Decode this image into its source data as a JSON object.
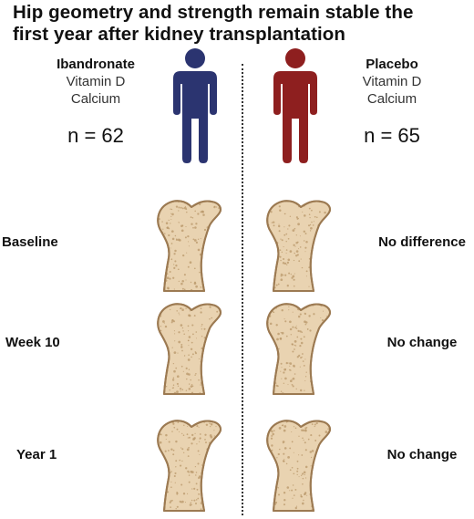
{
  "title": {
    "line1": "Hip geometry and strength remain stable the",
    "line2": "first year after kidney transplantation"
  },
  "groups": {
    "left": {
      "name": "Ibandronate",
      "line1": "Vitamin D",
      "line2": "Calcium",
      "n": "n = 62",
      "color": "#2b3470"
    },
    "right": {
      "name": "Placebo",
      "line1": "Vitamin D",
      "line2": "Calcium",
      "n": "n = 65",
      "color": "#8e1f1f"
    }
  },
  "rows": [
    {
      "label": "Baseline",
      "result": "No difference"
    },
    {
      "label": "Week 10",
      "result": "No change"
    },
    {
      "label": "Year 1",
      "result": "No change"
    }
  ],
  "colors": {
    "bone_fill": "#e9d3b1",
    "bone_outline": "#9c7a52",
    "bone_speckle": "#b8976a"
  },
  "icons": {
    "person": "person-icon",
    "bone": "femur-bone-icon"
  }
}
